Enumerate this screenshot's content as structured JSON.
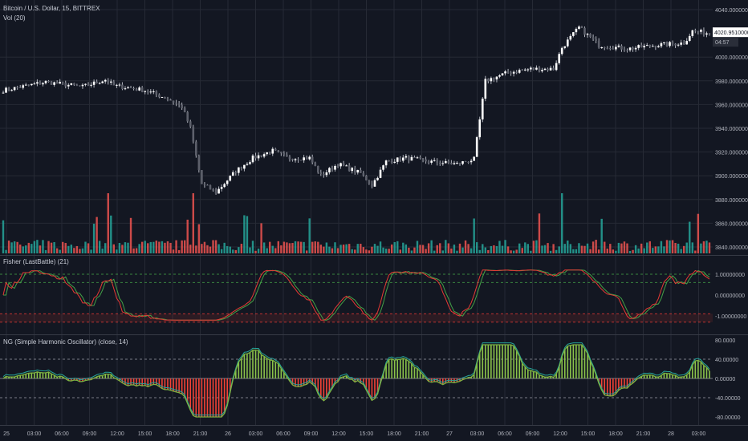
{
  "header": {
    "symbol_line": "Bitcoin / U.S. Dollar, 15, BITTREX",
    "volume_label": "Vol (20)"
  },
  "indicators": {
    "fisher_label": "Fisher (LastBattle) (21)",
    "oscillator_label": "NG (Simple Harmonic Oscillator) (close, 14)"
  },
  "price_axis": {
    "ticks": [
      "4040.00000000",
      "4000.00000000",
      "3980.00000000",
      "3960.00000000",
      "3940.00000000",
      "3920.00000000",
      "3900.00000000",
      "3880.00000000",
      "3860.00000000",
      "3840.00000000"
    ],
    "tick_values": [
      4040,
      4000,
      3980,
      3960,
      3940,
      3920,
      3900,
      3880,
      3860,
      3840
    ],
    "last_price": "4020.95100000",
    "countdown": "04:57"
  },
  "fisher_axis": {
    "ticks": [
      "1.00000000",
      "0.00000000",
      "-1.00000000"
    ],
    "tick_values": [
      1,
      0,
      -1
    ]
  },
  "oscillator_axis": {
    "ticks": [
      "80.0000",
      "40.00000",
      "0.00000",
      "-40.00000",
      "-80.00000"
    ],
    "tick_values": [
      80,
      40,
      0,
      -40,
      -80
    ]
  },
  "time_axis": {
    "labels": [
      "25",
      "03:00",
      "06:00",
      "09:00",
      "12:00",
      "15:00",
      "18:00",
      "21:00",
      "26",
      "03:00",
      "06:00",
      "09:00",
      "12:00",
      "15:00",
      "18:00",
      "21:00",
      "27",
      "03:00",
      "06:00",
      "09:00",
      "12:00",
      "15:00",
      "18:00",
      "21:00",
      "28",
      "03:00"
    ]
  },
  "colors": {
    "background": "#131722",
    "up_volume": "#26a69a",
    "down_volume": "#ef5350",
    "fisher_line": "#e53935",
    "fisher_trigger": "#43a047",
    "osc_positive": "#8bc34a",
    "osc_negative": "#f44336",
    "osc_line": "#7cb342"
  }
}
